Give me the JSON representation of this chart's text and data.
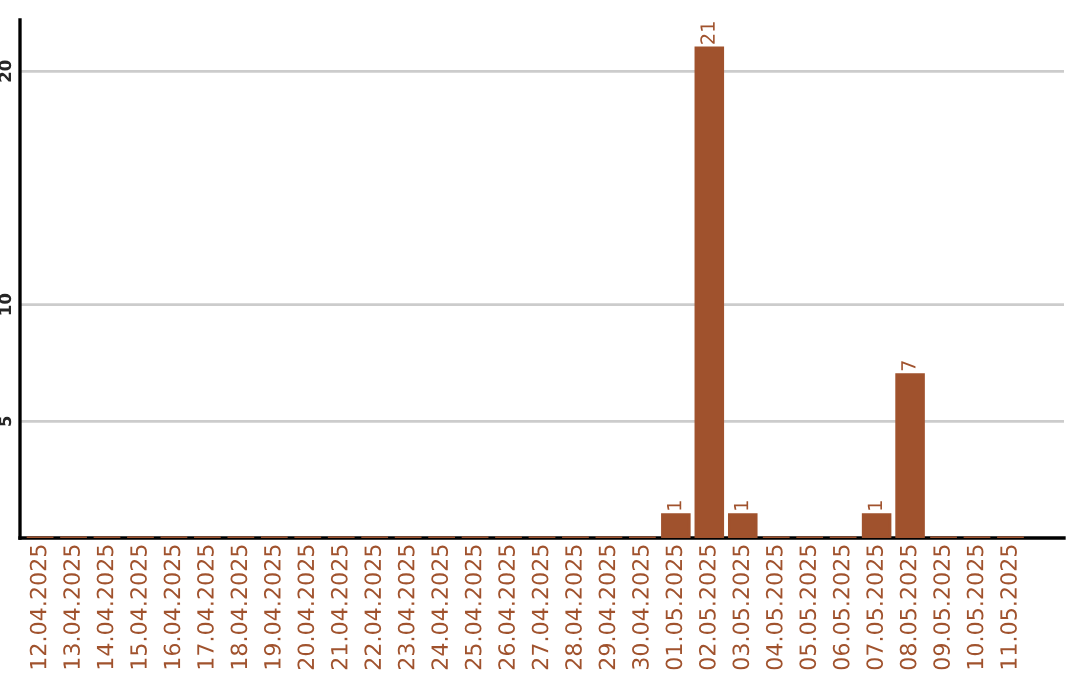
{
  "chart_data": {
    "type": "bar",
    "categories": [
      "12.04.2025",
      "13.04.2025",
      "14.04.2025",
      "15.04.2025",
      "16.04.2025",
      "17.04.2025",
      "18.04.2025",
      "19.04.2025",
      "20.04.2025",
      "21.04.2025",
      "22.04.2025",
      "23.04.2025",
      "24.04.2025",
      "25.04.2025",
      "26.04.2025",
      "27.04.2025",
      "28.04.2025",
      "29.04.2025",
      "30.04.2025",
      "01.05.2025",
      "02.05.2025",
      "03.05.2025",
      "04.05.2025",
      "05.05.2025",
      "06.05.2025",
      "07.05.2025",
      "08.05.2025",
      "09.05.2025",
      "10.05.2025",
      "11.05.2025"
    ],
    "values": [
      0,
      0,
      0,
      0,
      0,
      0,
      0,
      0,
      0,
      0,
      0,
      0,
      0,
      0,
      0,
      0,
      0,
      0,
      0,
      1,
      21,
      1,
      0,
      0,
      0,
      1,
      7,
      0,
      0,
      0
    ],
    "value_labels": [
      null,
      null,
      null,
      null,
      null,
      null,
      null,
      null,
      null,
      null,
      null,
      null,
      null,
      null,
      null,
      null,
      null,
      null,
      null,
      "1",
      "21",
      "1",
      null,
      null,
      null,
      "1",
      "7",
      null,
      null,
      null
    ],
    "color": "#a0522d",
    "ylim": [
      0,
      22.2
    ],
    "yticks": [
      5,
      10,
      20
    ],
    "grid": "y",
    "legend": false
  }
}
